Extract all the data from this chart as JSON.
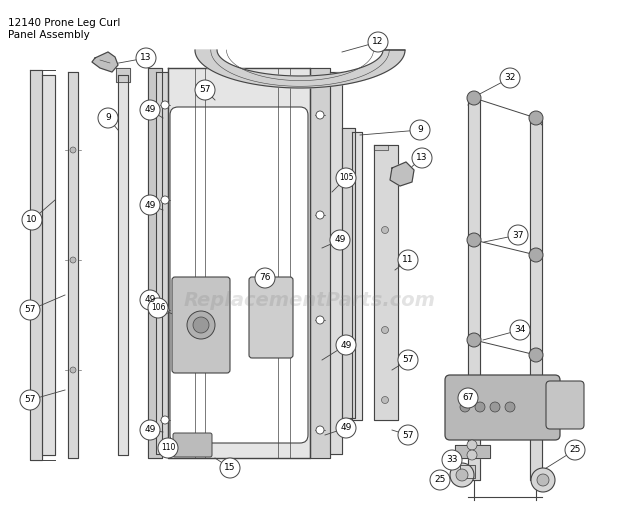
{
  "title_line1": "12140 Prone Leg Curl",
  "title_line2": "Panel Assembly",
  "bg_color": "#ffffff",
  "line_color": "#444444",
  "dark_color": "#333333",
  "fill_light": "#e8e8e8",
  "fill_mid": "#cccccc",
  "fill_dark": "#aaaaaa",
  "watermark": "ReplacementParts.com",
  "label_r": 0.018
}
